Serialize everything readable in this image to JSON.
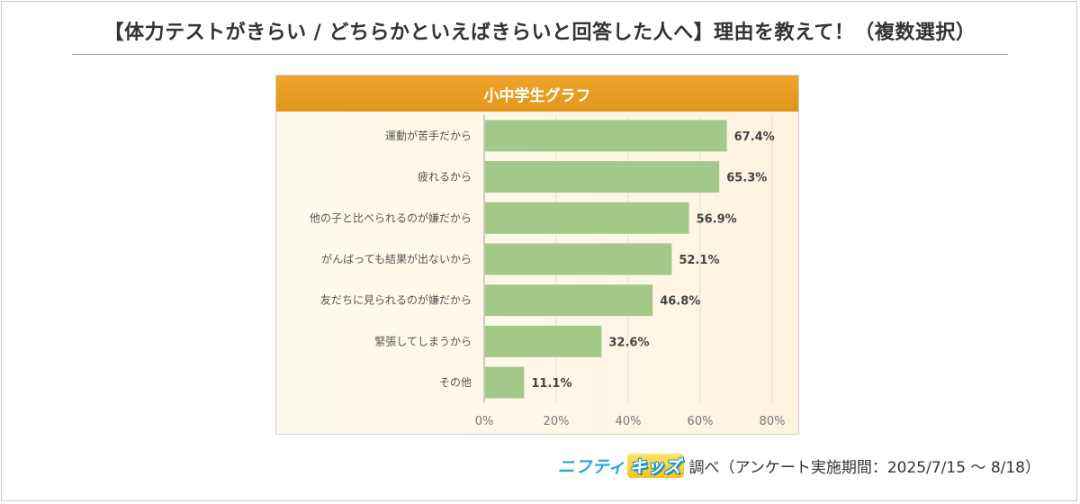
{
  "page_title": "【体力テストがきらい / どちらかといえばきらいと回答した人へ】理由を教えて！（複数選択）",
  "chart_data": {
    "type": "bar",
    "orientation": "horizontal",
    "title": "小中学生グラフ",
    "categories": [
      "運動が苦手だから",
      "疲れるから",
      "他の子と比べられるのが嫌だから",
      "がんばっても結果が出ないから",
      "友だちに見られるのが嫌だから",
      "緊張してしまうから",
      "その他"
    ],
    "values": [
      67.4,
      65.3,
      56.9,
      52.1,
      46.8,
      32.6,
      11.1
    ],
    "value_labels": [
      "67.4%",
      "65.3%",
      "56.9%",
      "52.1%",
      "46.8%",
      "32.6%",
      "11.1%"
    ],
    "xlim": [
      0,
      80
    ],
    "xticks": [
      0,
      20,
      40,
      60,
      80
    ],
    "xtick_labels": [
      "0%",
      "20%",
      "40%",
      "60%",
      "80%"
    ],
    "grid": true,
    "bar_color": "#a3c98a",
    "header_color": "#e89c20"
  },
  "credit": {
    "logo_part1": "ニフティ",
    "logo_part2": "キッズ",
    "text": "調べ（アンケート実施期間：2025/7/15 ～ 8/18）"
  }
}
